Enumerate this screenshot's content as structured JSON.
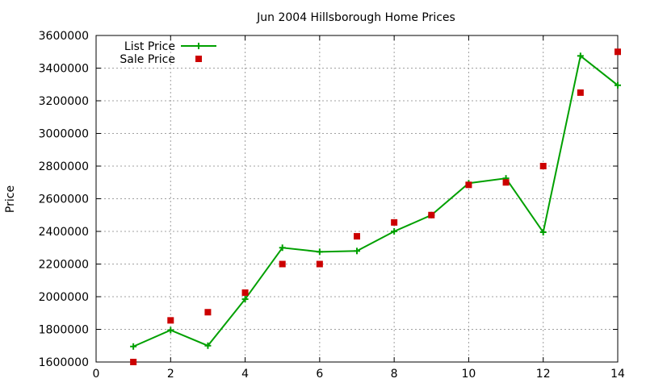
{
  "chart_data": {
    "type": "line",
    "title": "Jun 2004 Hillsborough Home Prices",
    "xlabel": "",
    "ylabel": "Price",
    "xlim": [
      0,
      14
    ],
    "ylim": [
      1600000,
      3600000
    ],
    "x_ticks": [
      0,
      2,
      4,
      6,
      8,
      10,
      12,
      14
    ],
    "y_ticks": [
      1600000,
      1800000,
      2000000,
      2200000,
      2400000,
      2600000,
      2800000,
      3000000,
      3200000,
      3400000,
      3600000
    ],
    "grid": true,
    "legend_position": "top-left",
    "series": [
      {
        "name": "List Price",
        "style": "line-with-plus-markers",
        "color": "#00a000",
        "points": [
          [
            1,
            1695000
          ],
          [
            2,
            1795000
          ],
          [
            3,
            1700000
          ],
          [
            4,
            1985000
          ],
          [
            5,
            2300000
          ],
          [
            6,
            2275000
          ],
          [
            7,
            2280000
          ],
          [
            8,
            2400000
          ],
          [
            9,
            2500000
          ],
          [
            10,
            2695000
          ],
          [
            11,
            2725000
          ],
          [
            12,
            2395000
          ],
          [
            13,
            3475000
          ],
          [
            14,
            3295000
          ]
        ]
      },
      {
        "name": "Sale Price",
        "style": "square-markers",
        "color": "#cc0000",
        "points": [
          [
            1,
            1600000
          ],
          [
            2,
            1855000
          ],
          [
            3,
            1905000
          ],
          [
            4,
            2025000
          ],
          [
            5,
            2200000
          ],
          [
            6,
            2200000
          ],
          [
            7,
            2370000
          ],
          [
            8,
            2455000
          ],
          [
            9,
            2500000
          ],
          [
            10,
            2685000
          ],
          [
            11,
            2700000
          ],
          [
            12,
            2800000
          ],
          [
            13,
            3250000
          ],
          [
            14,
            3500000
          ]
        ]
      }
    ]
  }
}
